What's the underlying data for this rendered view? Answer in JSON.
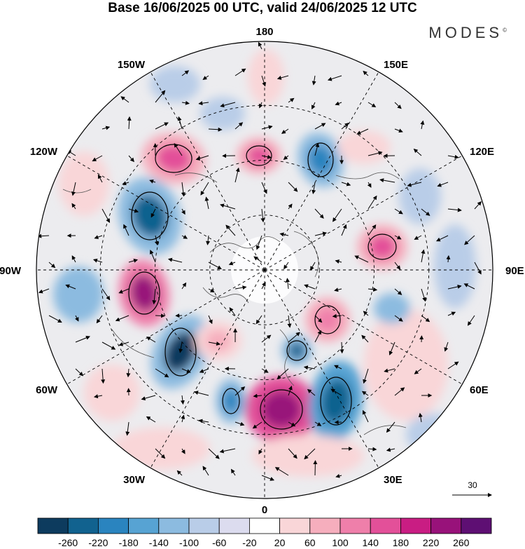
{
  "title": "Base 16/06/2025 00 UTC, valid 24/06/2025 12 UTC",
  "brand": "MODES",
  "brand_mark": "©",
  "longitude_labels": {
    "top": "180",
    "bottom": "0",
    "left": "90W",
    "right": "90E",
    "upper_left": "150W",
    "upper_right": "150E",
    "left_upper": "120W",
    "right_upper": "120E",
    "left_lower": "60W",
    "right_lower": "60E",
    "lower_left": "30W",
    "lower_right": "30E"
  },
  "reference_vector": {
    "label": "30"
  },
  "colorbar": {
    "ticks": [
      "-260",
      "-220",
      "-180",
      "-140",
      "-100",
      "-60",
      "-20",
      "20",
      "60",
      "100",
      "140",
      "180",
      "220",
      "260"
    ],
    "colors": [
      "#0d3b5e",
      "#11628f",
      "#2a84bf",
      "#57a3d3",
      "#8cbbe0",
      "#b9cde8",
      "#dcdcef",
      "#ffffff",
      "#f9d6d8",
      "#f6aebd",
      "#ef7faa",
      "#e35099",
      "#c91d83",
      "#98127a",
      "#5e0f73"
    ]
  }
}
